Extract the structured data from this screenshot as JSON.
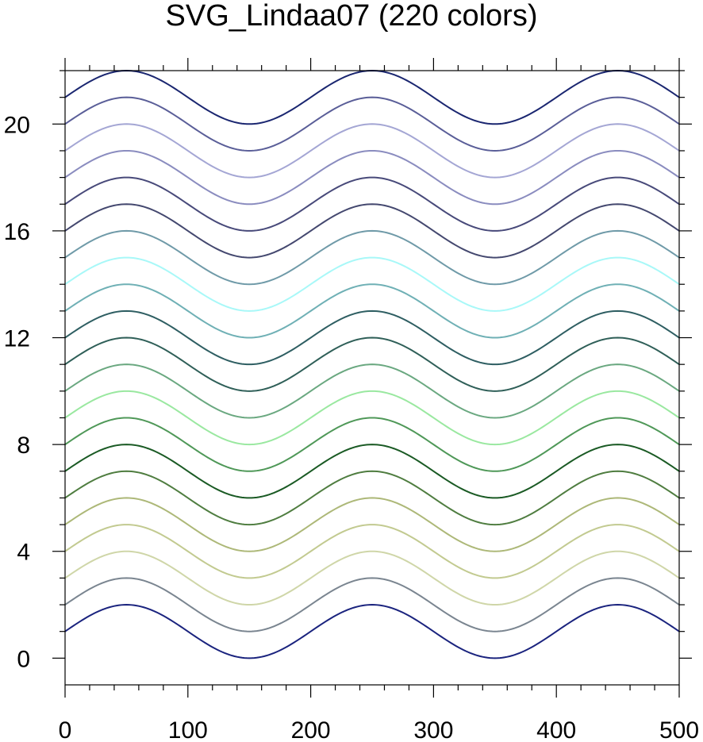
{
  "chart_data": {
    "type": "line",
    "title": "SVG_Lindaa07 (220 colors)",
    "xlabel": "",
    "ylabel": "",
    "xlim": [
      0,
      500
    ],
    "ylim": [
      -1,
      22
    ],
    "x_ticks": [
      0,
      100,
      200,
      300,
      400,
      500
    ],
    "y_ticks": [
      0,
      4,
      8,
      12,
      16,
      20
    ],
    "grid": false,
    "curve": "y = offset + sin(pi * x / 100)",
    "series": [
      {
        "offset": 1,
        "color": "#1a237e"
      },
      {
        "offset": 2,
        "color": "#7a8590"
      },
      {
        "offset": 3,
        "color": "#cfd6a8"
      },
      {
        "offset": 4,
        "color": "#c2ca90"
      },
      {
        "offset": 5,
        "color": "#adb878"
      },
      {
        "offset": 6,
        "color": "#4f7d40"
      },
      {
        "offset": 7,
        "color": "#1a5a24"
      },
      {
        "offset": 8,
        "color": "#4f9858"
      },
      {
        "offset": 9,
        "color": "#9ae8a0"
      },
      {
        "offset": 10,
        "color": "#6aa880"
      },
      {
        "offset": 11,
        "color": "#2f5f58"
      },
      {
        "offset": 12,
        "color": "#2e5e62"
      },
      {
        "offset": 13,
        "color": "#6fb0b5"
      },
      {
        "offset": 14,
        "color": "#a8f8f8"
      },
      {
        "offset": 15,
        "color": "#6f9aa8"
      },
      {
        "offset": 16,
        "color": "#44486f"
      },
      {
        "offset": 17,
        "color": "#484a7a"
      },
      {
        "offset": 18,
        "color": "#8a8cbf"
      },
      {
        "offset": 19,
        "color": "#a4a6d4"
      },
      {
        "offset": 20,
        "color": "#5a5e98"
      },
      {
        "offset": 21,
        "color": "#1a2670"
      }
    ]
  }
}
